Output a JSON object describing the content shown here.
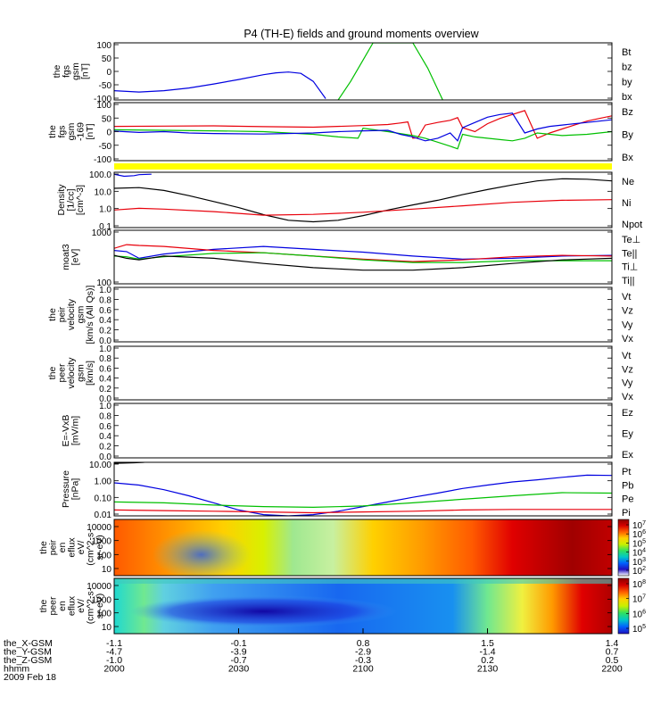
{
  "chart_data": {
    "type": "line",
    "title": "P4 (TH-E) fields and ground moments overview",
    "x_range": [
      2000,
      2200
    ],
    "panels": [
      {
        "id": "fgs",
        "ylabel": [
          "the",
          "fgs",
          "gsm",
          "[nT]"
        ],
        "yticks": [
          "100",
          "50",
          "0",
          "-50",
          "-100"
        ],
        "ylim": [
          -110,
          105
        ],
        "legend": [
          {
            "name": "Bt",
            "color": "#000000"
          },
          {
            "name": "bz",
            "color": "#e8000b"
          },
          {
            "name": "by",
            "color": "#00c000"
          },
          {
            "name": "bx",
            "color": "#0000e0"
          }
        ],
        "series": [
          {
            "name": "bx",
            "color": "#0000e0",
            "x": [
              2000,
              2010,
              2020,
              2030,
              2040,
              2050,
              2060,
              2065,
              2070,
              2075,
              2080,
              2085
            ],
            "y": [
              -75,
              -80,
              -75,
              -65,
              -50,
              -33,
              -15,
              -8,
              -5,
              -10,
              -40,
              -105
            ]
          },
          {
            "name": "by",
            "color": "#00c000",
            "x": [
              2090,
              2095,
              2100,
              2104,
              2112,
              2120,
              2126,
              2132
            ],
            "y": [
              -110,
              -40,
              40,
              105,
              105,
              105,
              10,
              -110
            ]
          }
        ]
      },
      {
        "id": "fgs169",
        "ylabel": [
          "the",
          "fgs",
          "gsm",
          "-169",
          "[nT]"
        ],
        "yticks": [
          "100",
          "50",
          "0",
          "-50",
          "-100"
        ],
        "ylim": [
          -115,
          105
        ],
        "legend": [
          {
            "name": "Bz",
            "color": "#e8000b"
          },
          {
            "name": "By",
            "color": "#00c000"
          },
          {
            "name": "Bx",
            "color": "#0000e0"
          }
        ],
        "series": [
          {
            "name": "Bz",
            "color": "#e8000b",
            "x": [
              2000,
              2020,
              2040,
              2060,
              2080,
              2100,
              2110,
              2115,
              2118,
              2120,
              2122,
              2125,
              2130,
              2135,
              2138,
              2140,
              2145,
              2150,
              2155,
              2160,
              2165,
              2170,
              2175,
              2180,
              2185,
              2190,
              2195,
              2200
            ],
            "y": [
              15,
              16,
              17,
              14,
              12,
              18,
              22,
              28,
              32,
              -30,
              -28,
              20,
              30,
              38,
              48,
              10,
              -5,
              25,
              45,
              60,
              75,
              -30,
              -10,
              5,
              20,
              35,
              45,
              55
            ]
          },
          {
            "name": "By",
            "color": "#00c000",
            "x": [
              2000,
              2020,
              2040,
              2060,
              2080,
              2090,
              2098,
              2100,
              2110,
              2120,
              2125,
              2130,
              2135,
              2138,
              2140,
              2145,
              2150,
              2155,
              2160,
              2165,
              2170,
              2180,
              2190,
              2200
            ],
            "y": [
              2,
              0,
              -2,
              -5,
              -15,
              -25,
              -30,
              8,
              -5,
              -20,
              -30,
              -45,
              -60,
              -70,
              -15,
              -25,
              -30,
              -35,
              -40,
              -30,
              -10,
              -20,
              -15,
              -5
            ]
          },
          {
            "name": "Bx",
            "color": "#0000e0",
            "x": [
              2000,
              2010,
              2020,
              2030,
              2040,
              2060,
              2080,
              2090,
              2100,
              2110,
              2115,
              2120,
              2125,
              2130,
              2135,
              2138,
              2140,
              2145,
              2150,
              2155,
              2160,
              2165,
              2170,
              2175,
              2180,
              2185,
              2190,
              2195,
              2200
            ],
            "y": [
              -3,
              -8,
              -5,
              -10,
              -12,
              -14,
              -10,
              -5,
              -2,
              0,
              -15,
              -25,
              -40,
              -30,
              -10,
              -40,
              10,
              30,
              50,
              60,
              65,
              -10,
              5,
              15,
              20,
              25,
              30,
              35,
              40
            ]
          }
        ]
      },
      {
        "id": "density",
        "ylabel": [
          "Density",
          "[1/cc]",
          "[cm^-3]"
        ],
        "yticks": [
          "100.0",
          "10.0",
          "1.0",
          "0.1"
        ],
        "log": true,
        "ylim": [
          0.05,
          200
        ],
        "legend": [
          {
            "name": "Ne",
            "color": "#e8000b"
          },
          {
            "name": "Ni",
            "color": "#000000"
          },
          {
            "name": "Npot",
            "color": "#0000e0"
          }
        ],
        "series": [
          {
            "name": "Ni",
            "color": "#000000",
            "x": [
              2000,
              2010,
              2020,
              2030,
              2040,
              2050,
              2060,
              2070,
              2080,
              2090,
              2100,
              2110,
              2120,
              2130,
              2140,
              2150,
              2160,
              2170,
              2180,
              2190,
              2200
            ],
            "y": [
              18,
              20,
              13,
              6,
              2.5,
              1.0,
              0.35,
              0.15,
              0.12,
              0.15,
              0.3,
              0.7,
              1.5,
              3,
              7,
              15,
              30,
              55,
              75,
              70,
              55
            ]
          },
          {
            "name": "Ne",
            "color": "#e8000b",
            "x": [
              2000,
              2010,
              2020,
              2040,
              2060,
              2080,
              2100,
              2120,
              2140,
              2160,
              2180,
              2200
            ],
            "y": [
              0.7,
              0.9,
              0.8,
              0.55,
              0.32,
              0.36,
              0.5,
              0.8,
              1.3,
              2.2,
              3,
              3.3
            ]
          },
          {
            "name": "Npot",
            "color": "#0000e0",
            "x": [
              2000,
              2004,
              2008,
              2010,
              2015
            ],
            "y": [
              150,
              110,
              120,
              140,
              150
            ]
          }
        ]
      },
      {
        "id": "temp",
        "ylabel": [
          "moat3",
          "[eV]"
        ],
        "yticks": [
          "1000",
          "100"
        ],
        "log": true,
        "ylim": [
          100,
          1000
        ],
        "legend": [
          {
            "name": "Te⊥",
            "color": "#e8000b"
          },
          {
            "name": "Te||",
            "color": "#000000"
          },
          {
            "name": "Ti⊥",
            "color": "#0000e0"
          },
          {
            "name": "Ti||",
            "color": "#00c000"
          }
        ],
        "series": [
          {
            "name": "Ti⊥",
            "color": "#0000e0",
            "x": [
              2000,
              2005,
              2010,
              2020,
              2040,
              2060,
              2080,
              2100,
              2120,
              2140,
              2160,
              2180,
              2200
            ],
            "y": [
              420,
              400,
              300,
              360,
              440,
              500,
              440,
              390,
              330,
              290,
              300,
              330,
              340
            ]
          },
          {
            "name": "Te⊥",
            "color": "#e8000b",
            "x": [
              2000,
              2005,
              2010,
              2020,
              2040,
              2060,
              2080,
              2100,
              2120,
              2140,
              2160,
              2180,
              2200
            ],
            "y": [
              460,
              540,
              520,
              500,
              420,
              380,
              330,
              290,
              260,
              280,
              320,
              340,
              330
            ]
          },
          {
            "name": "Ti||",
            "color": "#00c000",
            "x": [
              2000,
              2005,
              2010,
              2020,
              2040,
              2060,
              2080,
              2100,
              2120,
              2140,
              2160,
              2180,
              2200
            ],
            "y": [
              330,
              320,
              290,
              320,
              370,
              380,
              330,
              280,
              250,
              250,
              270,
              270,
              270
            ]
          },
          {
            "name": "Te||",
            "color": "#000000",
            "x": [
              2000,
              2005,
              2010,
              2020,
              2040,
              2060,
              2080,
              2100,
              2120,
              2140,
              2160,
              2180,
              2200
            ],
            "y": [
              340,
              300,
              280,
              330,
              300,
              240,
              200,
              180,
              180,
              200,
              240,
              280,
              300
            ]
          }
        ]
      },
      {
        "id": "peir_vel",
        "ylabel": [
          "the",
          "peir",
          "velocity",
          "gsm",
          "[km/s (All Qs)]"
        ],
        "yticks": [
          "1.0",
          "0.8",
          "0.6",
          "0.4",
          "0.2",
          "0.0"
        ],
        "ylim": [
          0,
          1
        ],
        "legend": [
          {
            "name": "Vt",
            "color": "#000000"
          },
          {
            "name": "Vz",
            "color": "#e8000b"
          },
          {
            "name": "Vy",
            "color": "#00c000"
          },
          {
            "name": "Vx",
            "color": "#0000e0"
          }
        ],
        "series": []
      },
      {
        "id": "peer_vel",
        "ylabel": [
          "the",
          "peer",
          "velocity",
          "gsm",
          "[km/s]"
        ],
        "yticks": [
          "1.0",
          "0.8",
          "0.6",
          "0.4",
          "0.2",
          "0.0"
        ],
        "ylim": [
          0,
          1
        ],
        "legend": [
          {
            "name": "Vt",
            "color": "#000000"
          },
          {
            "name": "Vz",
            "color": "#e8000b"
          },
          {
            "name": "Vy",
            "color": "#00c000"
          },
          {
            "name": "Vx",
            "color": "#0000e0"
          }
        ],
        "series": []
      },
      {
        "id": "efield",
        "ylabel": [
          "E=-VxB",
          "[mV/m]"
        ],
        "yticks": [
          "1.0",
          "0.8",
          "0.6",
          "0.4",
          "0.2",
          "0.0"
        ],
        "ylim": [
          0,
          1
        ],
        "legend": [
          {
            "name": "Ez",
            "color": "#e8000b"
          },
          {
            "name": "Ey",
            "color": "#00c000"
          },
          {
            "name": "Ex",
            "color": "#0000e0"
          }
        ],
        "series": []
      },
      {
        "id": "pressure",
        "ylabel": [
          "Pressure",
          "[nPa]"
        ],
        "yticks": [
          "10.00",
          "1.00",
          "0.10",
          "0.01"
        ],
        "log": true,
        "ylim": [
          0.005,
          15
        ],
        "legend": [
          {
            "name": "Pt",
            "color": "#000000"
          },
          {
            "name": "Pb",
            "color": "#e8000b"
          },
          {
            "name": "Pe",
            "color": "#00c000"
          },
          {
            "name": "Pi",
            "color": "#0000e0"
          }
        ],
        "series": [
          {
            "name": "Pt",
            "color": "#000000",
            "x": [
              2000,
              2008,
              2012
            ],
            "y": [
              13,
              14,
              15
            ]
          },
          {
            "name": "Pi",
            "color": "#0000e0",
            "x": [
              2000,
              2010,
              2020,
              2030,
              2040,
              2050,
              2060,
              2070,
              2080,
              2090,
              2100,
              2110,
              2120,
              2130,
              2140,
              2150,
              2160,
              2170,
              2180,
              2190,
              2200
            ],
            "y": [
              0.7,
              0.5,
              0.25,
              0.1,
              0.035,
              0.012,
              0.006,
              0.005,
              0.006,
              0.01,
              0.02,
              0.04,
              0.08,
              0.15,
              0.3,
              0.5,
              0.8,
              1.1,
              1.6,
              2.2,
              2.1
            ]
          },
          {
            "name": "Pe",
            "color": "#00c000",
            "x": [
              2000,
              2020,
              2040,
              2060,
              2080,
              2100,
              2120,
              2140,
              2160,
              2180,
              2200
            ],
            "y": [
              0.04,
              0.035,
              0.025,
              0.02,
              0.018,
              0.022,
              0.035,
              0.06,
              0.1,
              0.16,
              0.15
            ]
          },
          {
            "name": "Pb",
            "color": "#e8000b",
            "x": [
              2000,
              2020,
              2040,
              2060,
              2080,
              2100,
              2120,
              2140,
              2160,
              2180,
              2200
            ],
            "y": [
              0.012,
              0.011,
              0.01,
              0.009,
              0.008,
              0.009,
              0.01,
              0.012,
              0.013,
              0.013,
              0.013
            ]
          }
        ]
      },
      {
        "id": "peir_spec",
        "type": "heatmap",
        "ylabel": [
          "the",
          "peir",
          "en",
          "eflux",
          "eV/",
          "(cm^2-s-",
          "sr-eV)"
        ],
        "yticks": [
          "10000",
          "1000",
          "100",
          "10"
        ],
        "colorbar_ticks": [
          "10^7",
          "10^6",
          "10^5",
          "10^4",
          "10^3",
          "10^2"
        ],
        "colormap_stops": [
          "#8b0000",
          "#d60000",
          "#ff6000",
          "#ffd000",
          "#c8f000",
          "#30e060",
          "#00c8c8",
          "#0060ff",
          "#2010c0",
          "#ffffff"
        ]
      },
      {
        "id": "peer_spec",
        "type": "heatmap",
        "ylabel": [
          "the",
          "peer",
          "en",
          "eflux",
          "eV/",
          "(cm^2-s-",
          "sr-eV)"
        ],
        "yticks": [
          "10000",
          "1000",
          "100",
          "10"
        ],
        "colorbar_ticks": [
          "10^8",
          "10^7",
          "10^6",
          "10^5"
        ],
        "colormap_stops": [
          "#8b0000",
          "#d60000",
          "#ff6000",
          "#ffd000",
          "#c8f000",
          "#30e060",
          "#00c8c8",
          "#0060ff",
          "#2010c0"
        ]
      }
    ],
    "x_axis_rows": [
      {
        "label": "the_X-GSM",
        "values": [
          "-1.1",
          "-0.1",
          "0.8",
          "1.5",
          "1.4"
        ]
      },
      {
        "label": "the_Y-GSM",
        "values": [
          "-4.7",
          "-3.9",
          "-2.9",
          "-1.4",
          "0.7"
        ]
      },
      {
        "label": "the_Z-GSM",
        "values": [
          "-1.0",
          "-0.7",
          "-0.3",
          "0.2",
          "0.5"
        ]
      },
      {
        "label": "hhmm",
        "values": [
          "2000",
          "2030",
          "2100",
          "2130",
          "2200"
        ]
      },
      {
        "label": "2009 Feb 18",
        "values": []
      }
    ]
  }
}
